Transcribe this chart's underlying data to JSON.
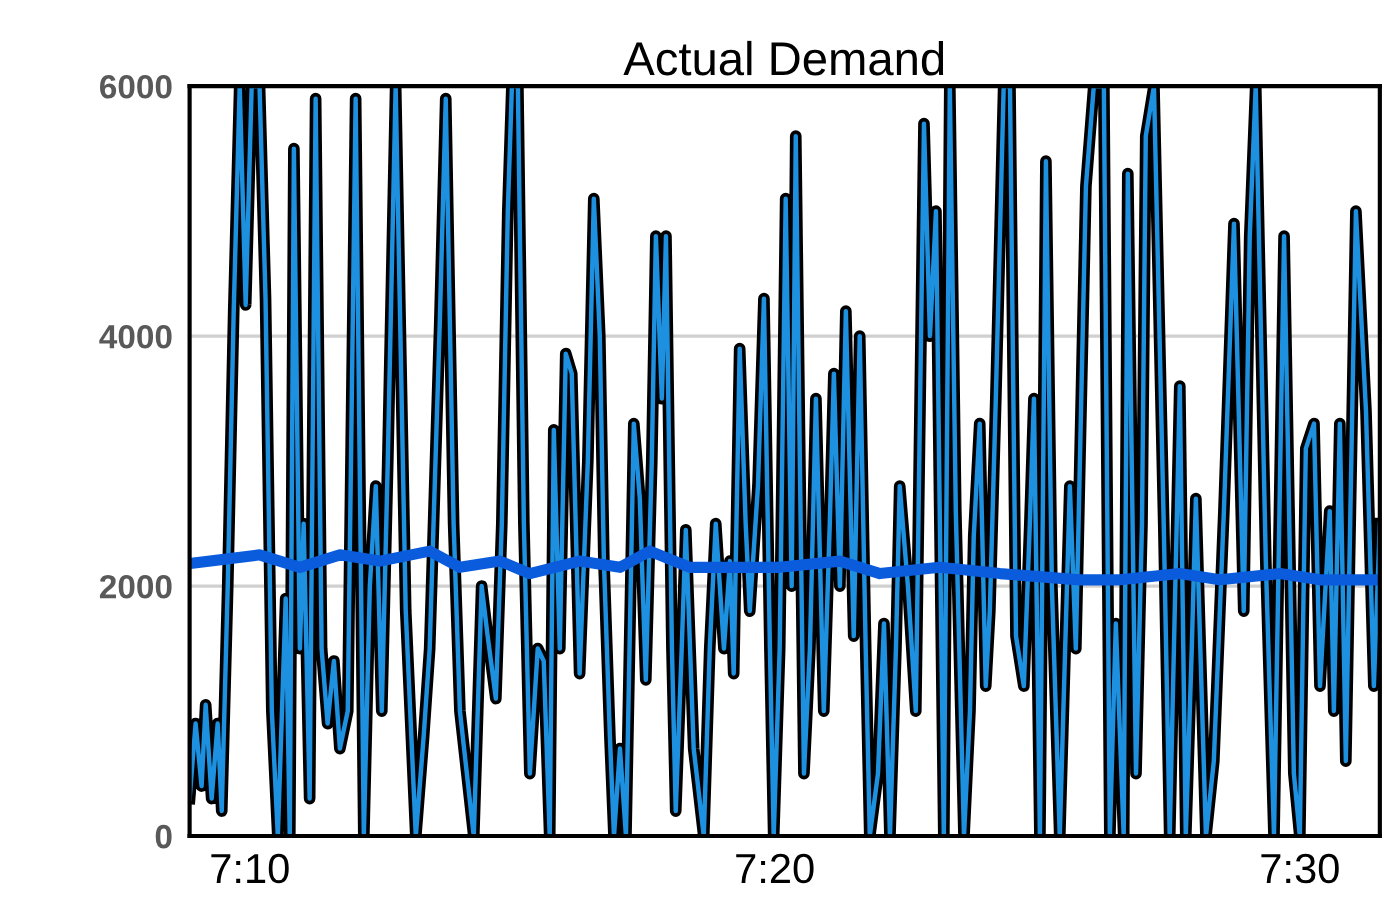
{
  "chart_data": {
    "type": "line",
    "title": "Actual Demand",
    "xlim": [
      7.1476,
      7.5254
    ],
    "xticks": [
      {
        "value": 7.1667,
        "label": "7:10"
      },
      {
        "value": 7.3333,
        "label": "7:20"
      },
      {
        "value": 7.5,
        "label": "7:30"
      }
    ],
    "ylim": [
      0,
      6000
    ],
    "yticks": [
      0,
      2000,
      4000,
      6000
    ],
    "grid": "y",
    "marker": "none",
    "line_style": "solid",
    "series": [
      {
        "color": "#1e90e0",
        "x": [
          7.1476,
          7.1495,
          7.1514,
          7.1527,
          7.1546,
          7.1565,
          7.1578,
          7.1597,
          7.1616,
          7.1635,
          7.1654,
          7.1673,
          7.1698,
          7.1717,
          7.1737,
          7.1756,
          7.1781,
          7.1794,
          7.1807,
          7.1826,
          7.1838,
          7.1857,
          7.1876,
          7.1895,
          7.1914,
          7.1934,
          7.1953,
          7.1978,
          7.2003,
          7.2029,
          7.2048,
          7.2067,
          7.2086,
          7.2105,
          7.213,
          7.2162,
          7.2194,
          7.2219,
          7.2238,
          7.227,
          7.2289,
          7.2314,
          7.2334,
          7.2378,
          7.2403,
          7.2422,
          7.2448,
          7.2467,
          7.2486,
          7.2499,
          7.2518,
          7.2537,
          7.2556,
          7.2581,
          7.26,
          7.2619,
          7.2632,
          7.2651,
          7.267,
          7.2689,
          7.2714,
          7.274,
          7.2759,
          7.2778,
          7.2791,
          7.281,
          7.2823,
          7.2842,
          7.2861,
          7.2886,
          7.2905,
          7.2924,
          7.2943,
          7.2956,
          7.2975,
          7.2988,
          7.3007,
          7.3019,
          7.3038,
          7.3051,
          7.3076,
          7.3108,
          7.3127,
          7.3146,
          7.3172,
          7.3191,
          7.3203,
          7.3222,
          7.3241,
          7.3254,
          7.328,
          7.3299,
          7.3318,
          7.333,
          7.3349,
          7.3368,
          7.3387,
          7.34,
          7.3413,
          7.3426,
          7.3445,
          7.3464,
          7.3489,
          7.3508,
          7.3521,
          7.354,
          7.3559,
          7.3584,
          7.3603,
          7.3622,
          7.3635,
          7.3661,
          7.368,
          7.3699,
          7.3718,
          7.373,
          7.3756,
          7.3781,
          7.3807,
          7.3826,
          7.3845,
          7.387,
          7.3889,
          7.3908,
          7.3934,
          7.3953,
          7.3965,
          7.3984,
          7.4003,
          7.4016,
          7.4035,
          7.406,
          7.408,
          7.4099,
          7.4124,
          7.4143,
          7.4156,
          7.4175,
          7.4194,
          7.4213,
          7.4238,
          7.427,
          7.4289,
          7.4321,
          7.4346,
          7.4378,
          7.4397,
          7.4416,
          7.4441,
          7.4454,
          7.448,
          7.4499,
          7.4511,
          7.4537,
          7.4568,
          7.4587,
          7.4619,
          7.4638,
          7.4657,
          7.467,
          7.4702,
          7.4727,
          7.4759,
          7.4791,
          7.4822,
          7.4841,
          7.486,
          7.4892,
          7.4918,
          7.495,
          7.4981,
          7.5,
          7.5019,
          7.5045,
          7.5064,
          7.5095,
          7.5108,
          7.5127,
          7.5146,
          7.5178,
          7.521,
          7.5235,
          7.5254
        ],
        "values": [
          300,
          900,
          400,
          1050,
          300,
          900,
          200,
          2000,
          4200,
          6000,
          4250,
          6000,
          6000,
          4300,
          1000,
          0,
          1900,
          0,
          5500,
          1500,
          2500,
          300,
          5900,
          1500,
          900,
          1400,
          700,
          1000,
          5900,
          0,
          2000,
          2800,
          1000,
          3000,
          6000,
          1800,
          0,
          800,
          1500,
          4100,
          5900,
          2500,
          1000,
          0,
          2000,
          1600,
          1100,
          2500,
          5000,
          6000,
          6000,
          2500,
          500,
          1500,
          1400,
          0,
          3250,
          1500,
          3860,
          3700,
          1300,
          3000,
          5100,
          4000,
          2200,
          800,
          0,
          700,
          0,
          3300,
          2700,
          1250,
          3000,
          4800,
          3500,
          4800,
          1500,
          200,
          1500,
          2450,
          700,
          0,
          1500,
          2500,
          1500,
          2200,
          1300,
          3900,
          2500,
          1800,
          2800,
          4300,
          1500,
          0,
          1500,
          5100,
          2000,
          5600,
          3000,
          500,
          1500,
          3500,
          1000,
          2500,
          3700,
          2000,
          4200,
          1600,
          4000,
          1500,
          0,
          500,
          1700,
          0,
          1500,
          2800,
          2000,
          1000,
          5700,
          4000,
          5000,
          0,
          6000,
          2600,
          0,
          1000,
          2400,
          3300,
          1200,
          1800,
          3500,
          6000,
          6000,
          1600,
          1200,
          2500,
          3500,
          0,
          5400,
          2000,
          0,
          2800,
          1500,
          5200,
          6000,
          6000,
          0,
          1700,
          0,
          5300,
          500,
          2500,
          5600,
          6000,
          2500,
          0,
          3600,
          0,
          1500,
          2700,
          0,
          600,
          2600,
          4900,
          1800,
          4800,
          6000,
          2200,
          0,
          4800,
          500,
          0,
          3100,
          3300,
          1200,
          2600,
          1000,
          3300,
          600,
          5000,
          3400,
          1200,
          2500
        ]
      },
      {
        "color": "#0a5cdc",
        "x": [
          7.1476,
          7.1698,
          7.1826,
          7.1953,
          7.208,
          7.2238,
          7.2334,
          7.2461,
          7.2556,
          7.2714,
          7.2842,
          7.2937,
          7.3064,
          7.3349,
          7.354,
          7.3667,
          7.3857,
          7.4048,
          7.4302,
          7.4429,
          7.4619,
          7.4746,
          7.4937,
          7.5064,
          7.5254
        ],
        "values": [
          2180,
          2250,
          2150,
          2250,
          2200,
          2280,
          2150,
          2200,
          2100,
          2200,
          2150,
          2280,
          2150,
          2150,
          2200,
          2100,
          2150,
          2100,
          2050,
          2050,
          2100,
          2050,
          2100,
          2050,
          2050
        ]
      }
    ]
  }
}
